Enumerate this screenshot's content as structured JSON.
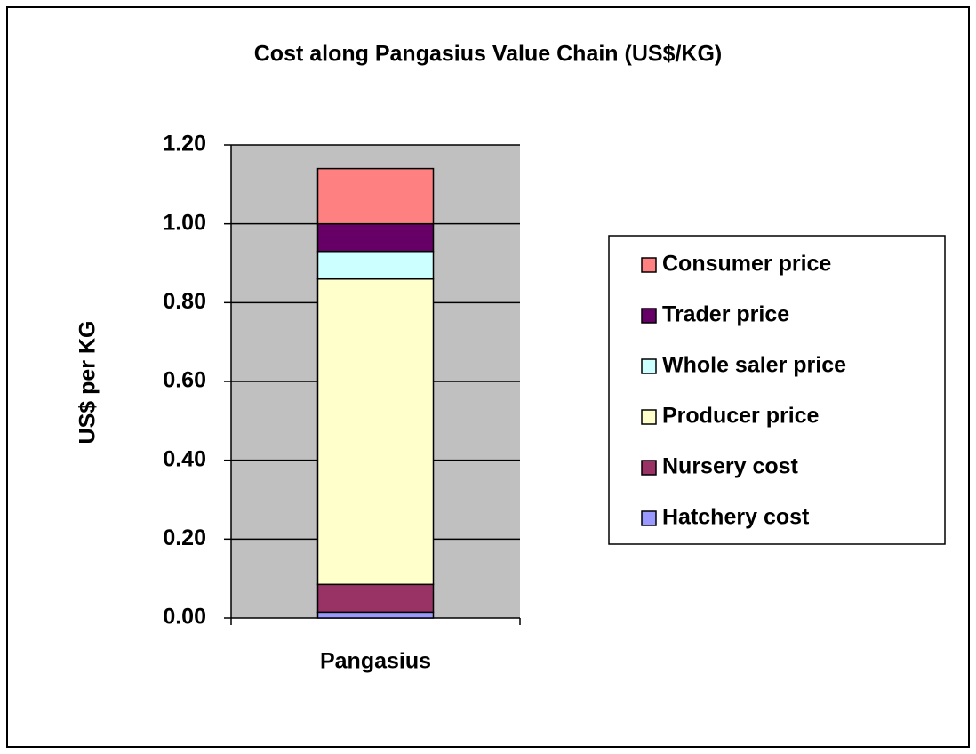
{
  "chart_data": {
    "type": "stacked_bar",
    "title": "Cost along Pangasius Value Chain (US$/KG)",
    "y_label": "US$ per KG",
    "categories": [
      "Pangasius"
    ],
    "series": [
      {
        "name": "Hatchery cost",
        "color": "#9999ff",
        "values": [
          0.015
        ]
      },
      {
        "name": "Nursery cost",
        "color": "#993366",
        "values": [
          0.07
        ]
      },
      {
        "name": "Producer price",
        "color": "#ffffcc",
        "values": [
          0.775
        ]
      },
      {
        "name": "Whole saler price",
        "color": "#ccffff",
        "values": [
          0.07
        ]
      },
      {
        "name": "Trader price",
        "color": "#660066",
        "values": [
          0.07
        ]
      },
      {
        "name": "Consumer price",
        "color": "#ff8080",
        "values": [
          0.14
        ]
      }
    ],
    "ylim": [
      0,
      1.2
    ],
    "yticks": [
      {
        "value": 0,
        "label": "0.00"
      },
      {
        "value": 0.2,
        "label": "0.20"
      },
      {
        "value": 0.4,
        "label": "0.40"
      },
      {
        "value": 0.6,
        "label": "0.60"
      },
      {
        "value": 0.8,
        "label": "0.80"
      },
      {
        "value": 1,
        "label": "1.00"
      },
      {
        "value": 1.2,
        "label": "1.20"
      }
    ],
    "grid": true,
    "legend": "right"
  }
}
